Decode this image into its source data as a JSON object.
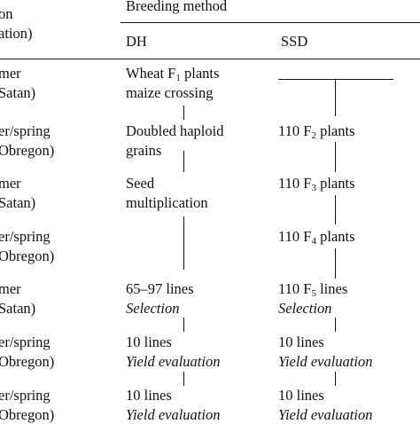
{
  "header": {
    "col1_line1": "on",
    "col1_line2": "ation)",
    "breeding_method": "Breeding method",
    "dh": "DH",
    "ssd": "SSD"
  },
  "rows": [
    {
      "location_line1": "mer",
      "location_line2": "Satan)",
      "dh_line1_pre": "Wheat F",
      "dh_line1_sub": "1",
      "dh_line1_post": " plants",
      "dh_line2": "maize crossing"
    },
    {
      "location_line1": "er/spring",
      "location_line2": "Obregon)",
      "dh_line1": "Doubled haploid",
      "dh_line2": "grains",
      "ssd_pre": "110 F",
      "ssd_sub": "2",
      "ssd_post": " plants"
    },
    {
      "location_line1": "mer",
      "location_line2": "Satan)",
      "dh_line1": "Seed",
      "dh_line2": "multiplication",
      "ssd_pre": "110 F",
      "ssd_sub": "3",
      "ssd_post": " plants"
    },
    {
      "location_line1": "er/spring",
      "location_line2": "Obregon)",
      "ssd_pre": "110 F",
      "ssd_sub": "4",
      "ssd_post": " plants"
    },
    {
      "location_line1": "mer",
      "location_line2": "Satan)",
      "dh_line1": "65–97 lines",
      "dh_line2": "Selection",
      "ssd_pre": "110 F",
      "ssd_sub": "5",
      "ssd_post": " lines",
      "ssd_line2": "Selection"
    },
    {
      "location_line1": "er/spring",
      "location_line2": "Obregon)",
      "dh_line1": "10 lines",
      "dh_line2": "Yield evaluation",
      "ssd_line1": "10 lines",
      "ssd_line2": "Yield evaluation"
    },
    {
      "location_line1": "er/spring",
      "location_line2": "Obregon)",
      "dh_line1": "10 lines",
      "dh_line2": "Yield evaluation",
      "ssd_line1": "10 lines",
      "ssd_line2": "Yield evaluation"
    }
  ]
}
